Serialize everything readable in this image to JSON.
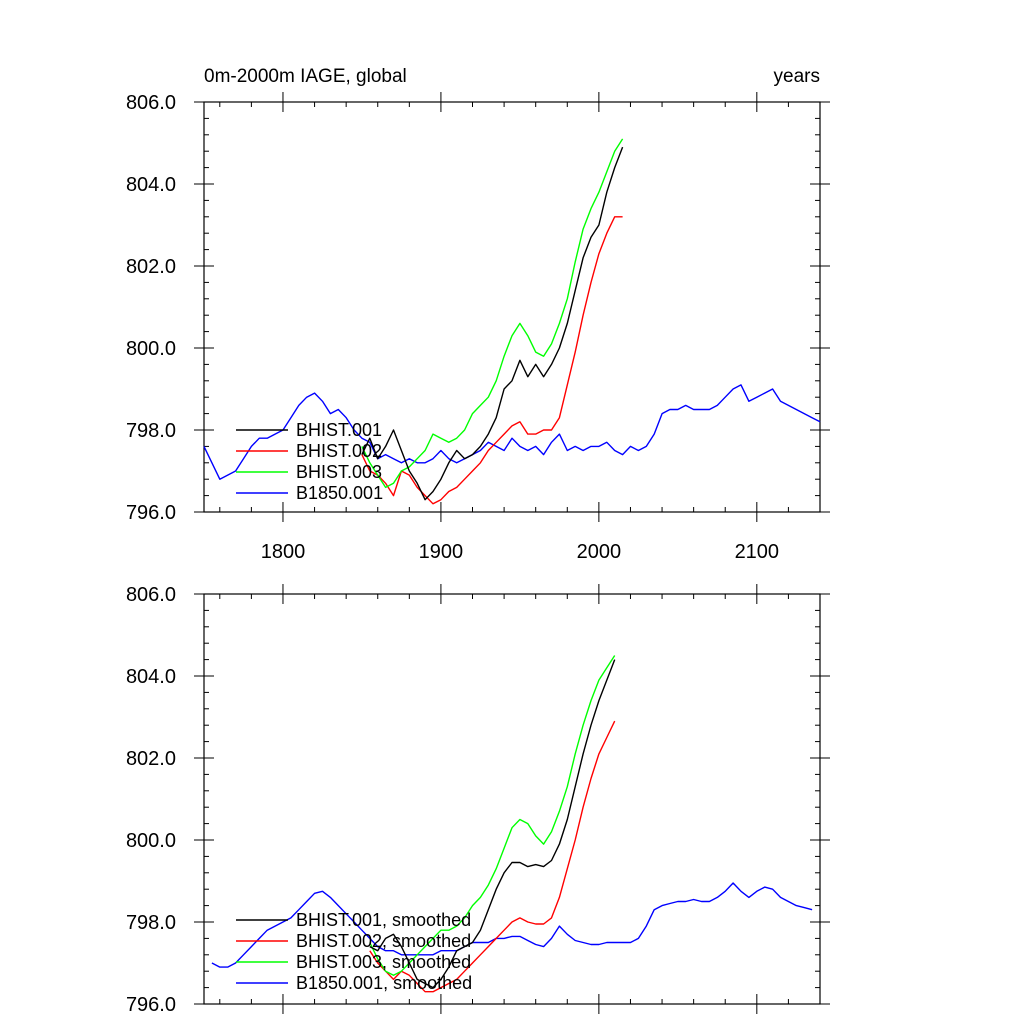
{
  "chart_data": [
    {
      "type": "line",
      "title_left": "0m-2000m IAGE, global",
      "title_right": "years",
      "xlim": [
        1750,
        2140
      ],
      "ylim": [
        796,
        806
      ],
      "xticks": [
        1800,
        1900,
        2000,
        2100
      ],
      "xtick_labels": [
        "1800",
        "1900",
        "2000",
        "2100"
      ],
      "yticks": [
        796,
        798,
        800,
        802,
        804,
        806
      ],
      "ytick_labels": [
        "796.0",
        "798.0",
        "800.0",
        "802.0",
        "804.0",
        "806.0"
      ],
      "legend_position": "lower-left",
      "series": [
        {
          "name": "BHIST.001",
          "color": "#000000",
          "x": [
            1850,
            1855,
            1860,
            1865,
            1870,
            1875,
            1880,
            1885,
            1890,
            1895,
            1900,
            1905,
            1910,
            1915,
            1920,
            1925,
            1930,
            1935,
            1940,
            1945,
            1950,
            1955,
            1960,
            1965,
            1970,
            1975,
            1980,
            1985,
            1990,
            1995,
            2000,
            2005,
            2010,
            2015
          ],
          "y": [
            797.4,
            797.8,
            797.3,
            797.6,
            798.0,
            797.5,
            797.0,
            796.7,
            796.3,
            796.5,
            796.8,
            797.2,
            797.5,
            797.3,
            797.4,
            797.6,
            797.9,
            798.3,
            799.0,
            799.2,
            799.7,
            799.3,
            799.6,
            799.3,
            799.6,
            800.0,
            800.6,
            801.4,
            802.2,
            802.7,
            803.0,
            803.8,
            804.4,
            804.9
          ]
        },
        {
          "name": "BHIST.002",
          "color": "#ff0000",
          "x": [
            1850,
            1855,
            1860,
            1865,
            1870,
            1875,
            1880,
            1885,
            1890,
            1895,
            1900,
            1905,
            1910,
            1915,
            1920,
            1925,
            1930,
            1935,
            1940,
            1945,
            1950,
            1955,
            1960,
            1965,
            1970,
            1975,
            1980,
            1985,
            1990,
            1995,
            2000,
            2005,
            2010,
            2015
          ],
          "y": [
            797.4,
            797.0,
            796.9,
            796.7,
            796.4,
            797.0,
            796.9,
            796.6,
            796.4,
            796.2,
            796.3,
            796.5,
            796.6,
            796.8,
            797.0,
            797.2,
            797.5,
            797.7,
            797.9,
            798.1,
            798.2,
            797.9,
            797.9,
            798.0,
            798.0,
            798.3,
            799.1,
            799.9,
            800.8,
            801.6,
            802.3,
            802.8,
            803.2,
            803.2
          ]
        },
        {
          "name": "BHIST.003",
          "color": "#00ff00",
          "x": [
            1850,
            1855,
            1860,
            1865,
            1870,
            1875,
            1880,
            1885,
            1890,
            1895,
            1900,
            1905,
            1910,
            1915,
            1920,
            1925,
            1930,
            1935,
            1940,
            1945,
            1950,
            1955,
            1960,
            1965,
            1970,
            1975,
            1980,
            1985,
            1990,
            1995,
            2000,
            2005,
            2010,
            2015
          ],
          "y": [
            797.6,
            797.2,
            796.9,
            796.6,
            796.7,
            797.0,
            797.1,
            797.3,
            797.5,
            797.9,
            797.8,
            797.7,
            797.8,
            798.0,
            798.4,
            798.6,
            798.8,
            799.2,
            799.8,
            800.3,
            800.6,
            800.3,
            799.9,
            799.8,
            800.1,
            800.6,
            801.2,
            802.1,
            802.9,
            803.4,
            803.8,
            804.3,
            804.8,
            805.1
          ]
        },
        {
          "name": "B1850.001",
          "color": "#0000ff",
          "x": [
            1750,
            1755,
            1760,
            1765,
            1770,
            1775,
            1780,
            1785,
            1790,
            1795,
            1800,
            1805,
            1810,
            1815,
            1820,
            1825,
            1830,
            1835,
            1840,
            1845,
            1850,
            1855,
            1860,
            1865,
            1870,
            1875,
            1880,
            1885,
            1890,
            1895,
            1900,
            1905,
            1910,
            1915,
            1920,
            1925,
            1930,
            1935,
            1940,
            1945,
            1950,
            1955,
            1960,
            1965,
            1970,
            1975,
            1980,
            1985,
            1990,
            1995,
            2000,
            2005,
            2010,
            2015,
            2020,
            2025,
            2030,
            2035,
            2040,
            2045,
            2050,
            2055,
            2060,
            2065,
            2070,
            2075,
            2080,
            2085,
            2090,
            2095,
            2100,
            2105,
            2110,
            2115,
            2120,
            2125,
            2130,
            2135,
            2140
          ],
          "y": [
            797.6,
            797.2,
            796.8,
            796.9,
            797.0,
            797.3,
            797.6,
            797.8,
            797.8,
            797.9,
            798.0,
            798.3,
            798.6,
            798.8,
            798.9,
            798.7,
            798.4,
            798.5,
            798.3,
            798.0,
            797.8,
            797.7,
            797.3,
            797.4,
            797.3,
            797.2,
            797.3,
            797.2,
            797.2,
            797.3,
            797.5,
            797.3,
            797.2,
            797.3,
            797.4,
            797.5,
            797.7,
            797.6,
            797.5,
            797.8,
            797.6,
            797.5,
            797.6,
            797.4,
            797.7,
            797.9,
            797.5,
            797.6,
            797.5,
            797.6,
            797.6,
            797.7,
            797.5,
            797.4,
            797.6,
            797.5,
            797.6,
            797.9,
            798.4,
            798.5,
            798.5,
            798.6,
            798.5,
            798.5,
            798.5,
            798.6,
            798.8,
            799.0,
            799.1,
            798.7,
            798.8,
            798.9,
            799.0,
            798.7,
            798.6,
            798.5,
            798.4,
            798.3,
            798.2
          ]
        }
      ]
    },
    {
      "type": "line",
      "xlim": [
        1750,
        2140
      ],
      "ylim": [
        796,
        806
      ],
      "xticks": [
        1800,
        1900,
        2000,
        2100
      ],
      "yticks": [
        796,
        798,
        800,
        802,
        804,
        806
      ],
      "ytick_labels": [
        "796.0",
        "798.0",
        "800.0",
        "802.0",
        "804.0",
        "806.0"
      ],
      "legend_position": "lower-left",
      "series": [
        {
          "name": "BHIST.001, smoothed",
          "color": "#000000",
          "x": [
            1855,
            1860,
            1865,
            1870,
            1875,
            1880,
            1885,
            1890,
            1895,
            1900,
            1905,
            1910,
            1915,
            1920,
            1925,
            1930,
            1935,
            1940,
            1945,
            1950,
            1955,
            1960,
            1965,
            1970,
            1975,
            1980,
            1985,
            1990,
            1995,
            2000,
            2005,
            2010
          ],
          "y": [
            797.4,
            797.3,
            797.6,
            797.7,
            797.4,
            797.0,
            796.6,
            796.5,
            796.4,
            796.6,
            796.9,
            797.3,
            797.4,
            797.5,
            797.8,
            798.3,
            798.8,
            799.2,
            799.45,
            799.45,
            799.35,
            799.4,
            799.35,
            799.5,
            799.9,
            800.5,
            801.3,
            802.1,
            802.8,
            803.4,
            803.9,
            804.4
          ]
        },
        {
          "name": "BHIST.002, smoothed",
          "color": "#ff0000",
          "x": [
            1855,
            1860,
            1865,
            1870,
            1875,
            1880,
            1885,
            1890,
            1895,
            1900,
            1905,
            1910,
            1915,
            1920,
            1925,
            1930,
            1935,
            1940,
            1945,
            1950,
            1955,
            1960,
            1965,
            1970,
            1975,
            1980,
            1985,
            1990,
            1995,
            2000,
            2005,
            2010
          ],
          "y": [
            797.3,
            797.0,
            796.8,
            796.6,
            796.8,
            796.7,
            796.5,
            796.3,
            796.3,
            796.4,
            796.5,
            796.6,
            796.8,
            797.0,
            797.2,
            797.4,
            797.6,
            797.8,
            798.0,
            798.1,
            798.0,
            797.95,
            797.95,
            798.1,
            798.6,
            799.3,
            800.0,
            800.8,
            801.5,
            802.1,
            802.5,
            802.9
          ]
        },
        {
          "name": "BHIST.003, smoothed",
          "color": "#00ff00",
          "x": [
            1855,
            1860,
            1865,
            1870,
            1875,
            1880,
            1885,
            1890,
            1895,
            1900,
            1905,
            1910,
            1915,
            1920,
            1925,
            1930,
            1935,
            1940,
            1945,
            1950,
            1955,
            1960,
            1965,
            1970,
            1975,
            1980,
            1985,
            1990,
            1995,
            2000,
            2005,
            2010
          ],
          "y": [
            797.5,
            797.1,
            796.8,
            796.7,
            796.8,
            797.0,
            797.2,
            797.4,
            797.6,
            797.8,
            797.8,
            797.9,
            798.1,
            798.4,
            798.6,
            798.9,
            799.3,
            799.8,
            800.3,
            800.5,
            800.4,
            800.1,
            799.9,
            800.2,
            800.7,
            801.3,
            802.1,
            802.8,
            803.4,
            803.9,
            804.2,
            804.5
          ]
        },
        {
          "name": "B1850.001, smoothed",
          "color": "#0000ff",
          "x": [
            1755,
            1760,
            1765,
            1770,
            1775,
            1780,
            1785,
            1790,
            1795,
            1800,
            1805,
            1810,
            1815,
            1820,
            1825,
            1830,
            1835,
            1840,
            1845,
            1850,
            1855,
            1860,
            1865,
            1870,
            1875,
            1880,
            1885,
            1890,
            1895,
            1900,
            1905,
            1910,
            1915,
            1920,
            1925,
            1930,
            1935,
            1940,
            1945,
            1950,
            1955,
            1960,
            1965,
            1970,
            1975,
            1980,
            1985,
            1990,
            1995,
            2000,
            2005,
            2010,
            2015,
            2020,
            2025,
            2030,
            2035,
            2040,
            2045,
            2050,
            2055,
            2060,
            2065,
            2070,
            2075,
            2080,
            2085,
            2090,
            2095,
            2100,
            2105,
            2110,
            2115,
            2120,
            2125,
            2130,
            2135
          ],
          "y": [
            797.0,
            796.9,
            796.9,
            797.0,
            797.2,
            797.4,
            797.6,
            797.8,
            797.9,
            798.0,
            798.1,
            798.3,
            798.5,
            798.7,
            798.75,
            798.6,
            798.4,
            798.2,
            798.0,
            797.8,
            797.6,
            797.4,
            797.3,
            797.3,
            797.2,
            797.2,
            797.2,
            797.2,
            797.2,
            797.3,
            797.3,
            797.3,
            797.4,
            797.5,
            797.5,
            797.5,
            797.6,
            797.6,
            797.65,
            797.65,
            797.55,
            797.45,
            797.4,
            797.6,
            797.9,
            797.7,
            797.55,
            797.5,
            797.45,
            797.45,
            797.5,
            797.5,
            797.5,
            797.5,
            797.6,
            797.9,
            798.3,
            798.4,
            798.45,
            798.5,
            798.5,
            798.55,
            798.5,
            798.5,
            798.6,
            798.75,
            798.95,
            798.75,
            798.6,
            798.75,
            798.85,
            798.8,
            798.6,
            798.5,
            798.4,
            798.35,
            798.3
          ]
        }
      ]
    }
  ]
}
